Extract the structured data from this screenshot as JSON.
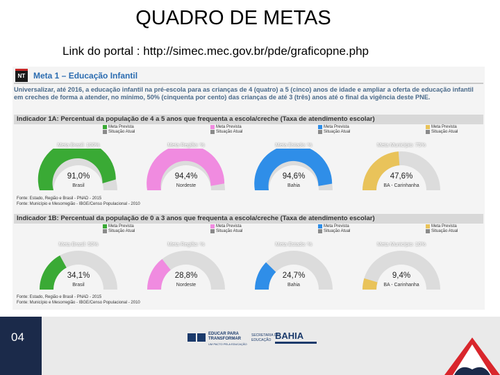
{
  "slide": {
    "title": "QUADRO DE METAS",
    "link": "Link do portal : http://simec.mec.gov.br/pde/graficopne.php",
    "page_number": "04"
  },
  "panel": {
    "badge": "NT",
    "meta_title": "Meta 1 – Educação Infantil",
    "meta_text": "Universalizar, até 2016, a educação infantil na pré-escola para as crianças de 4 (quatro) a 5 (cinco) anos de idade e ampliar a oferta de educação infantil em creches de forma a atender, no mínimo, 50% (cinquenta por cento) das crianças de até 3 (três) anos até o final da vigência deste PNE.",
    "legend_prevista": "Meta Prevista",
    "legend_atual": "Situação Atual"
  },
  "indicators": [
    {
      "title": "Indicador 1A: Percentual da população de 4 a 5 anos que frequenta a escola/creche (Taxa de atendimento escolar)",
      "source1": "Fonte: Estado, Região e Brasil - PNAD - 2015",
      "source2": "Fonte: Município e Mesorregião - IBGE/Censo Populacional - 2010",
      "gauges": [
        {
          "label": "Meta Brasil: 100%",
          "value": 91.0,
          "value_text": "91,0%",
          "sub": "Brasil",
          "color": "#3aaa35"
        },
        {
          "label": "Meta Região: %",
          "value": 94.4,
          "value_text": "94,4%",
          "sub": "Nordeste",
          "color": "#f08be0"
        },
        {
          "label": "Meta Estado: %",
          "value": 94.6,
          "value_text": "94,6%",
          "sub": "Bahia",
          "color": "#2f8ee8"
        },
        {
          "label": "Meta Município: 75%",
          "value": 47.6,
          "value_text": "47,6%",
          "sub": "BA - Carinhanha",
          "color": "#e9c35a"
        }
      ]
    },
    {
      "title": "Indicador 1B: Percentual da população de 0 a 3 anos que frequenta a escola/creche (Taxa de atendimento escolar)",
      "source1": "Fonte: Estado, Região e Brasil - PNAD - 2015",
      "source2": "Fonte: Município e Mesorregião - IBGE/Censo Populacional - 2010",
      "gauges": [
        {
          "label": "Meta Brasil: 50%",
          "value": 34.1,
          "value_text": "34,1%",
          "sub": "Brasil",
          "color": "#3aaa35"
        },
        {
          "label": "Meta Região: %",
          "value": 28.8,
          "value_text": "28,8%",
          "sub": "Nordeste",
          "color": "#f08be0"
        },
        {
          "label": "Meta Estado: %",
          "value": 24.7,
          "value_text": "24,7%",
          "sub": "Bahia",
          "color": "#2f8ee8"
        },
        {
          "label": "Meta Município: 10%",
          "value": 9.4,
          "value_text": "9,4%",
          "sub": "BA - Carinhanha",
          "color": "#e9c35a"
        }
      ]
    }
  ],
  "footer": {
    "logo_educar_1": "EDUCAR PARA",
    "logo_educar_2": "TRANSFORMAR",
    "logo_educar_3": "UM PACTO PELA EDUCAÇÃO",
    "logo_sec_1": "SECRETARIA DA",
    "logo_sec_2": "EDUCAÇÃO",
    "logo_bahia": "BAHIA"
  },
  "colors": {
    "track": "#dcdcdc",
    "meta_blue": "#2b6cb0",
    "footer_navy": "#1b2a4a",
    "seal_red": "#d9262c"
  }
}
